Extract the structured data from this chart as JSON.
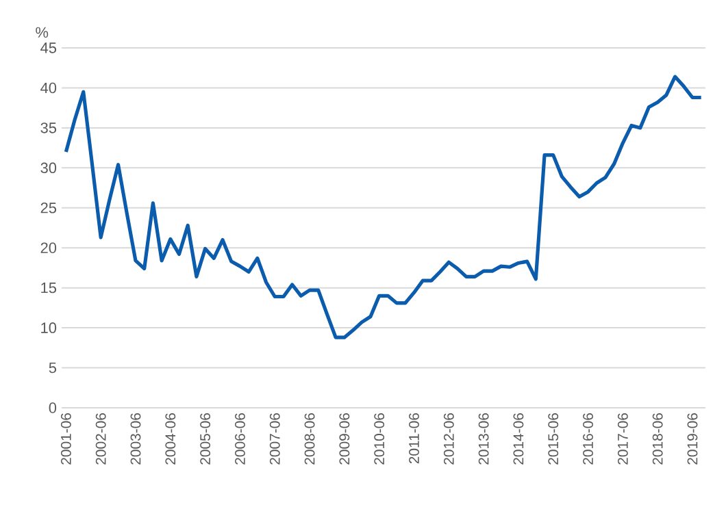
{
  "chart_data": {
    "type": "line",
    "ylabel": "%",
    "categories": [
      "2001-06",
      null,
      null,
      null,
      "2002-06",
      null,
      null,
      null,
      "2003-06",
      null,
      null,
      null,
      "2004-06",
      null,
      null,
      null,
      "2005-06",
      null,
      null,
      null,
      "2006-06",
      null,
      null,
      null,
      "2007-06",
      null,
      null,
      null,
      "2008-06",
      null,
      null,
      null,
      "2009-06",
      null,
      null,
      null,
      "2010-06",
      null,
      null,
      null,
      "2011-06",
      null,
      null,
      null,
      "2012-06",
      null,
      null,
      null,
      "2013-06",
      null,
      null,
      null,
      "2014-06",
      null,
      null,
      null,
      "2015-06",
      null,
      null,
      null,
      "2016-06",
      null,
      null,
      null,
      "2017-06",
      null,
      null,
      null,
      "2018-06",
      null,
      null,
      null,
      "2019-06",
      null
    ],
    "values": [
      32.0,
      36.0,
      39.5,
      30.5,
      21.3,
      26.0,
      30.4,
      24.3,
      18.4,
      17.4,
      25.6,
      18.4,
      21.1,
      19.2,
      22.8,
      16.4,
      19.9,
      18.7,
      21.0,
      18.3,
      17.7,
      17.0,
      18.7,
      15.7,
      13.9,
      13.9,
      15.4,
      14.0,
      14.7,
      14.7,
      11.7,
      8.8,
      8.8,
      9.7,
      10.7,
      11.4,
      14.0,
      14.0,
      13.1,
      13.1,
      14.4,
      15.9,
      15.9,
      17.0,
      18.2,
      17.4,
      16.4,
      16.4,
      17.1,
      17.1,
      17.7,
      17.6,
      18.1,
      18.3,
      16.1,
      31.6,
      31.6,
      28.9,
      27.6,
      26.4,
      27.0,
      28.1,
      28.8,
      30.5,
      33.1,
      35.3,
      35.0,
      37.6,
      38.2,
      39.1,
      41.4,
      40.2,
      38.8,
      38.8
    ],
    "color": "#0b5cad",
    "ylim": [
      0,
      45
    ],
    "yticks": [
      0,
      5,
      10,
      15,
      20,
      25,
      30,
      35,
      40,
      45
    ],
    "grid": "y"
  }
}
